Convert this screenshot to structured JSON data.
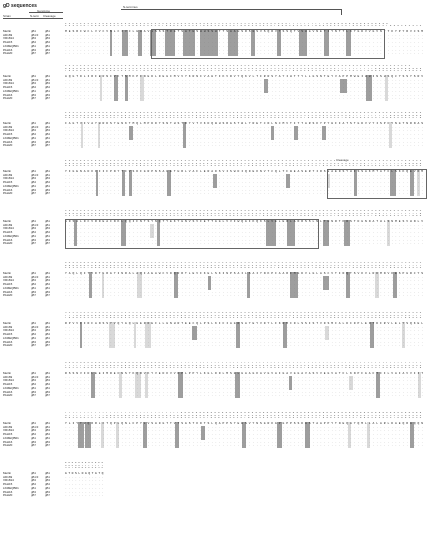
{
  "title": "gD sequences",
  "header": {
    "strain_label": "Strain",
    "genotype_label": "Genotype",
    "n_term_label": "N-term",
    "cleavage_label": "Cleavage",
    "n_terminus_label": "N-terminus"
  },
  "strains": [
    "Merlin",
    "AD169",
    "VR1814",
    "PAH15",
    "LKMEQB01",
    "PAH16",
    "PAH20"
  ],
  "genotypes": {
    "nterm": [
      "gB1",
      "gB1/3",
      "gB3",
      "gB4",
      "gB1",
      "gB3",
      "gB7"
    ],
    "cleavage": [
      "gB1",
      "gB1",
      "gB3",
      "gB4",
      "gB1",
      "gB3",
      "gB7"
    ]
  },
  "blocks": [
    {
      "ref": "MESRIWCLVVCVNLCIVCLGAAVSSSSTRGTSATHSHHSSHTTSAAHSRSGSVSQRVTSSQTVSHGVNETIYNTTLKYGDVVGVNTTKYPYRVCSMAQGTDLIRFERNIVCTSMKPINEDLDEGIMVVYKRNIVAHTFKVRVYQKVLTFRRSYAYIHTTYLLGSNTEYVAPPMWEIHHINSHSQCYSSYSRVIAGTVFVAYHRDSYENKTMQLMPDDYSNTHSTRYVTVKDQWHSRGSTWLYRETCNLNCMVTITTARSKYPYHFFATSTGDVVYISPFYNGTNRNASYFGENADKFFIFPNYTIVSDFGRPNSALETHRLVAFLERADSVISWDIQDEKNVTCQLTFWEASERTIRSEAEDSYHFSSAKMTATFLSKKQEVNMSDSALDCVRDEAINKLQQIFNTSYNQTYEKYGNVSVFETTGGLVVFWQGIKQKSLVELERLANRSSLNLTHNRTKRSTDGNNATHLSNMESVHNLVYAQLQFTYDTLRGYINRALAQIAEAWCVDQRRTLEVFKELSKINPSAILSAIYNKPIAARFMGDVLGLASCVTINQTSVKVLRDMNVKESPGRCYSRPVVIFNFANSSYVQYGQLGEDNEILLGNHRTEECQLPSLKIFIAGNSAYEYVDYLFKRMIDLSSISTVDSMIALDIDPLENTDFRVLELYSQKELRSSNVFDLEEIMREFNSYKQRVKYVEDKVVDPLPPYLKGLDDLMSGLGAAGKAVGVAIGAVGGAVASVVEGVATFLKNPFGAFTIILVAIAVVIITYLIYTRQRRLCTQPLQNLFPYLVSADGTTVTSGSTKDTSLQAPPSYEESVYNSGRKGPGPPSSDASTAAPPYTNEQAYQMLLALARLDAEQRAQQNGTDSLDGQTGTQDKGQKPNLLDRLRHRKNGYRHLKDSDEEENV"
    }
  ]
}
